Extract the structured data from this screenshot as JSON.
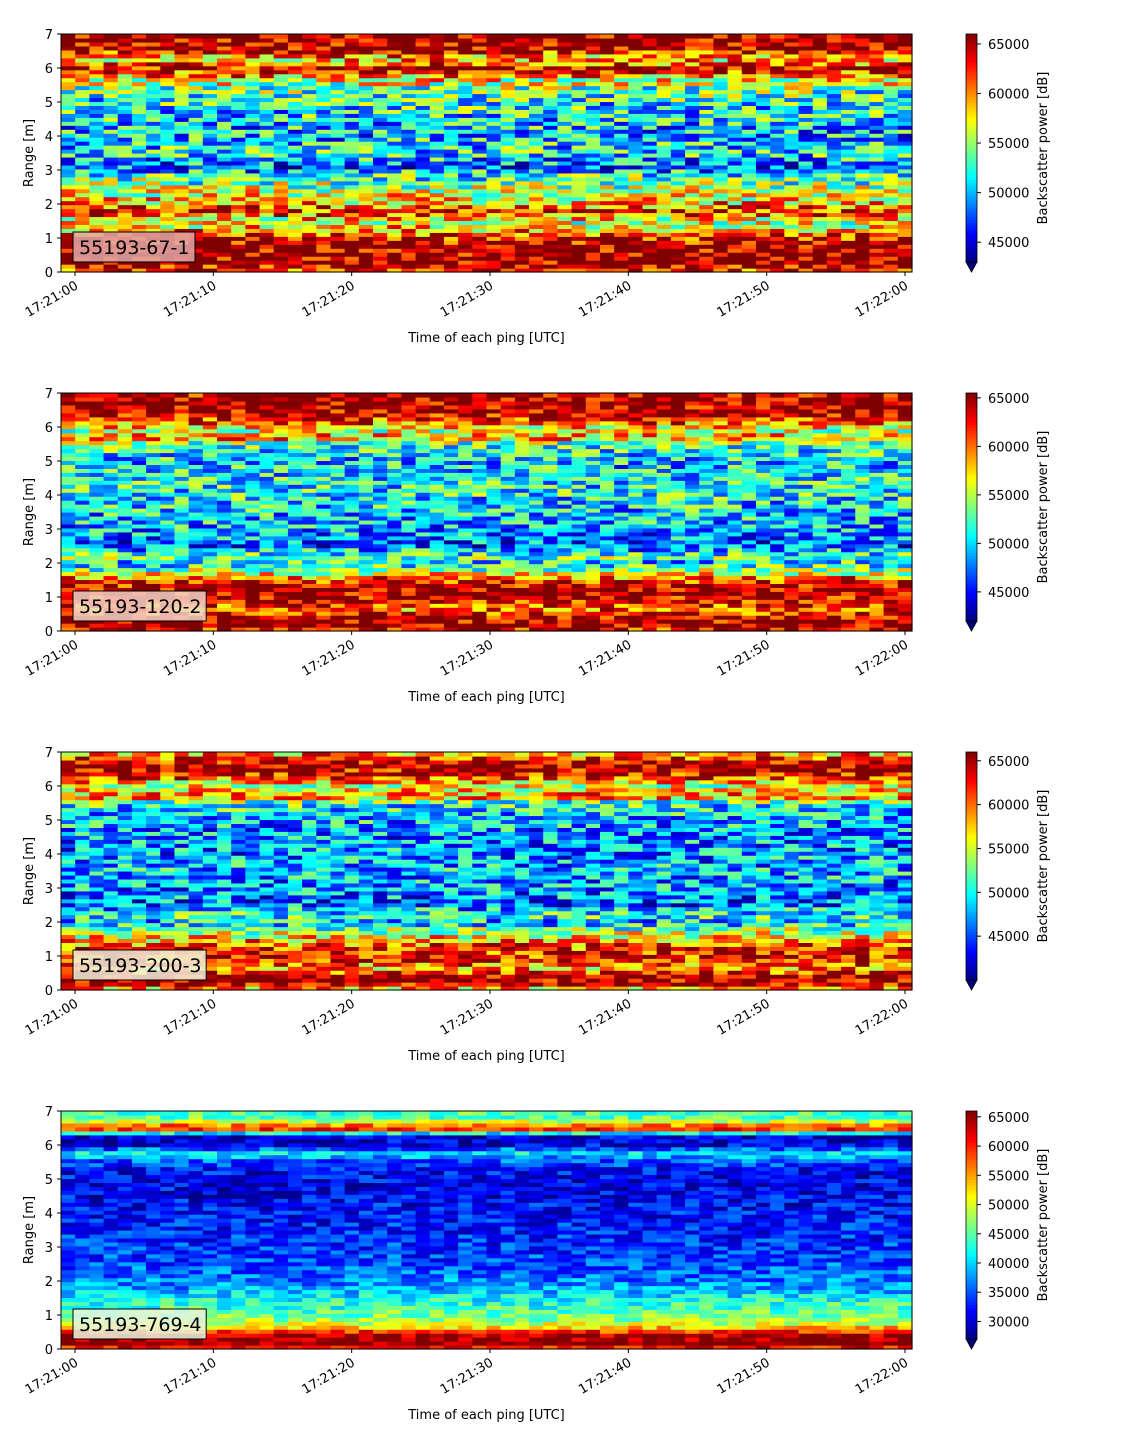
{
  "figure": {
    "colormap": "jet",
    "x_tick_labels": [
      "17:21:00",
      "17:21:10",
      "17:21:20",
      "17:21:30",
      "17:21:40",
      "17:21:50",
      "17:22:00"
    ],
    "xlabel": "Time of each ping [UTC]",
    "ylabel": "Range [m]",
    "colorbar_label": "Backscatter power [dB]"
  },
  "chart_data": [
    {
      "type": "heatmap",
      "id": "55193-67-1",
      "label": "55193-67-1",
      "label_box_color": "#e0a8a8",
      "x_range": [
        "17:21:00",
        "17:22:00"
      ],
      "ylim": [
        0,
        7
      ],
      "yticks": [
        0,
        1,
        2,
        3,
        4,
        5,
        6,
        7
      ],
      "colorbar_range": [
        43000,
        66000
      ],
      "colorbar_ticks": [
        45000,
        50000,
        55000,
        60000,
        65000
      ],
      "colorbar_extend": "min",
      "range_profile": [
        [
          0.0,
          62000
        ],
        [
          0.25,
          66000
        ],
        [
          0.7,
          66000
        ],
        [
          1.0,
          64000
        ],
        [
          1.25,
          59000
        ],
        [
          1.5,
          56000
        ],
        [
          1.8,
          63000
        ],
        [
          2.1,
          58000
        ],
        [
          2.4,
          56000
        ],
        [
          2.8,
          53000
        ],
        [
          3.1,
          48000
        ],
        [
          3.5,
          52000
        ],
        [
          4.0,
          50000
        ],
        [
          4.5,
          51000
        ],
        [
          5.0,
          52000
        ],
        [
          5.4,
          54000
        ],
        [
          5.7,
          58000
        ],
        [
          6.0,
          65000
        ],
        [
          6.2,
          59000
        ],
        [
          6.4,
          60000
        ],
        [
          6.55,
          66000
        ],
        [
          7.0,
          66000
        ]
      ],
      "noise_amplitude": 6000
    },
    {
      "type": "heatmap",
      "id": "55193-120-2",
      "label": "55193-120-2",
      "label_box_color": "#f2d4c8",
      "x_range": [
        "17:21:00",
        "17:22:00"
      ],
      "ylim": [
        0,
        7
      ],
      "yticks": [
        0,
        1,
        2,
        3,
        4,
        5,
        6,
        7
      ],
      "colorbar_range": [
        42000,
        65500
      ],
      "colorbar_ticks": [
        45000,
        50000,
        55000,
        60000,
        65000
      ],
      "colorbar_extend": "min",
      "range_profile": [
        [
          0.0,
          62000
        ],
        [
          0.15,
          65500
        ],
        [
          0.45,
          64000
        ],
        [
          0.65,
          60000
        ],
        [
          0.9,
          64000
        ],
        [
          1.2,
          65000
        ],
        [
          1.5,
          62000
        ],
        [
          1.75,
          55000
        ],
        [
          2.0,
          50000
        ],
        [
          2.2,
          53000
        ],
        [
          2.5,
          47000
        ],
        [
          3.0,
          49000
        ],
        [
          3.5,
          50000
        ],
        [
          4.0,
          51000
        ],
        [
          4.5,
          51000
        ],
        [
          5.0,
          50000
        ],
        [
          5.5,
          52000
        ],
        [
          5.7,
          60000
        ],
        [
          5.9,
          55000
        ],
        [
          6.2,
          62000
        ],
        [
          6.5,
          65000
        ],
        [
          6.8,
          65500
        ],
        [
          7.0,
          64000
        ]
      ],
      "noise_amplitude": 5500
    },
    {
      "type": "heatmap",
      "id": "55193-200-3",
      "label": "55193-200-3",
      "label_box_color": "#f0f0dc",
      "x_range": [
        "17:21:00",
        "17:22:00"
      ],
      "ylim": [
        0,
        7
      ],
      "yticks": [
        0,
        1,
        2,
        3,
        4,
        5,
        6,
        7
      ],
      "colorbar_range": [
        40000,
        66000
      ],
      "colorbar_ticks": [
        45000,
        50000,
        55000,
        60000,
        65000
      ],
      "colorbar_extend": "min",
      "range_profile": [
        [
          0.0,
          55000
        ],
        [
          0.15,
          64000
        ],
        [
          0.4,
          66000
        ],
        [
          0.65,
          58000
        ],
        [
          0.9,
          63000
        ],
        [
          1.2,
          62000
        ],
        [
          1.5,
          58000
        ],
        [
          1.8,
          53000
        ],
        [
          2.0,
          48000
        ],
        [
          2.2,
          51000
        ],
        [
          2.5,
          46000
        ],
        [
          3.0,
          47000
        ],
        [
          3.5,
          48000
        ],
        [
          4.0,
          47000
        ],
        [
          4.5,
          47000
        ],
        [
          5.0,
          48000
        ],
        [
          5.5,
          50000
        ],
        [
          5.7,
          60000
        ],
        [
          6.0,
          55000
        ],
        [
          6.3,
          62000
        ],
        [
          6.6,
          66000
        ],
        [
          6.9,
          60000
        ],
        [
          7.0,
          58000
        ]
      ],
      "noise_amplitude": 6000
    },
    {
      "type": "heatmap",
      "id": "55193-769-4",
      "label": "55193-769-4",
      "label_box_color": "#e8f4e0",
      "x_range": [
        "17:21:00",
        "17:22:00"
      ],
      "ylim": [
        0,
        7
      ],
      "yticks": [
        0,
        1,
        2,
        3,
        4,
        5,
        6,
        7
      ],
      "colorbar_range": [
        27000,
        66000
      ],
      "colorbar_ticks": [
        30000,
        35000,
        40000,
        45000,
        50000,
        55000,
        60000,
        65000
      ],
      "colorbar_extend": "min",
      "range_profile": [
        [
          0.0,
          58000
        ],
        [
          0.15,
          66000
        ],
        [
          0.45,
          64000
        ],
        [
          0.6,
          55000
        ],
        [
          0.8,
          48000
        ],
        [
          1.2,
          44000
        ],
        [
          1.5,
          42000
        ],
        [
          1.8,
          38000
        ],
        [
          2.2,
          36000
        ],
        [
          2.8,
          34000
        ],
        [
          3.5,
          33000
        ],
        [
          4.2,
          32000
        ],
        [
          4.8,
          31000
        ],
        [
          5.3,
          32000
        ],
        [
          5.6,
          36000
        ],
        [
          5.75,
          42000
        ],
        [
          6.0,
          31000
        ],
        [
          6.3,
          30000
        ],
        [
          6.45,
          60000
        ],
        [
          6.6,
          56000
        ],
        [
          6.75,
          46000
        ],
        [
          7.0,
          44000
        ]
      ],
      "noise_amplitude": 4500
    }
  ]
}
